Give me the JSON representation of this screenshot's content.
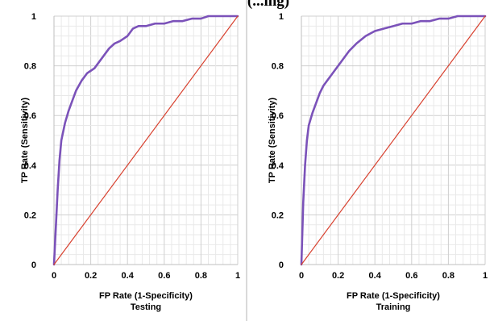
{
  "header": {
    "title_fragment": "(...ing)"
  },
  "chart_data": [
    {
      "type": "line",
      "title": "Testing",
      "xlabel": "FP Rate (1-Specificity)",
      "ylabel": "TP Rate (Sensitivity)",
      "xlim": [
        0,
        1
      ],
      "ylim": [
        0,
        1
      ],
      "xticks": [
        "0",
        "0.2",
        "0.4",
        "0.6",
        "0.8",
        "1"
      ],
      "yticks": [
        "0",
        "0.2",
        "0.4",
        "0.6",
        "0.8",
        "1"
      ],
      "grid": true,
      "series": [
        {
          "role": "roc",
          "color": "#7b52b9",
          "x": [
            0,
            0.01,
            0.02,
            0.03,
            0.04,
            0.06,
            0.08,
            0.1,
            0.12,
            0.15,
            0.18,
            0.2,
            0.22,
            0.25,
            0.28,
            0.3,
            0.33,
            0.36,
            0.4,
            0.43,
            0.46,
            0.5,
            0.55,
            0.6,
            0.65,
            0.7,
            0.75,
            0.8,
            0.84,
            0.9,
            1.0
          ],
          "y": [
            0,
            0.15,
            0.3,
            0.42,
            0.5,
            0.57,
            0.62,
            0.66,
            0.7,
            0.74,
            0.77,
            0.78,
            0.79,
            0.82,
            0.85,
            0.87,
            0.89,
            0.9,
            0.92,
            0.95,
            0.96,
            0.96,
            0.97,
            0.97,
            0.98,
            0.98,
            0.99,
            0.99,
            1.0,
            1.0,
            1.0
          ]
        },
        {
          "role": "diagonal",
          "color": "#d8412f",
          "x": [
            0,
            1
          ],
          "y": [
            0,
            1
          ]
        }
      ]
    },
    {
      "type": "line",
      "title": "Training",
      "xlabel": "FP Rate (1-Specificity)",
      "ylabel": "TP Rate (Sensitivity)",
      "xlim": [
        0,
        1
      ],
      "ylim": [
        0,
        1
      ],
      "xticks": [
        "0",
        "0.2",
        "0.4",
        "0.6",
        "0.8",
        "1"
      ],
      "yticks": [
        "0",
        "0.2",
        "0.4",
        "0.6",
        "0.8",
        "1"
      ],
      "grid": true,
      "series": [
        {
          "role": "roc",
          "color": "#7b52b9",
          "x": [
            0,
            0.01,
            0.02,
            0.03,
            0.04,
            0.06,
            0.08,
            0.1,
            0.12,
            0.15,
            0.18,
            0.2,
            0.23,
            0.26,
            0.3,
            0.35,
            0.4,
            0.45,
            0.5,
            0.55,
            0.6,
            0.65,
            0.7,
            0.75,
            0.8,
            0.85,
            0.9,
            0.95,
            1.0
          ],
          "y": [
            0,
            0.25,
            0.4,
            0.5,
            0.56,
            0.61,
            0.65,
            0.69,
            0.72,
            0.75,
            0.78,
            0.8,
            0.83,
            0.86,
            0.89,
            0.92,
            0.94,
            0.95,
            0.96,
            0.97,
            0.97,
            0.98,
            0.98,
            0.99,
            0.99,
            1.0,
            1.0,
            1.0,
            1.0
          ]
        },
        {
          "role": "diagonal",
          "color": "#d8412f",
          "x": [
            0,
            1
          ],
          "y": [
            0,
            1
          ]
        }
      ]
    }
  ]
}
